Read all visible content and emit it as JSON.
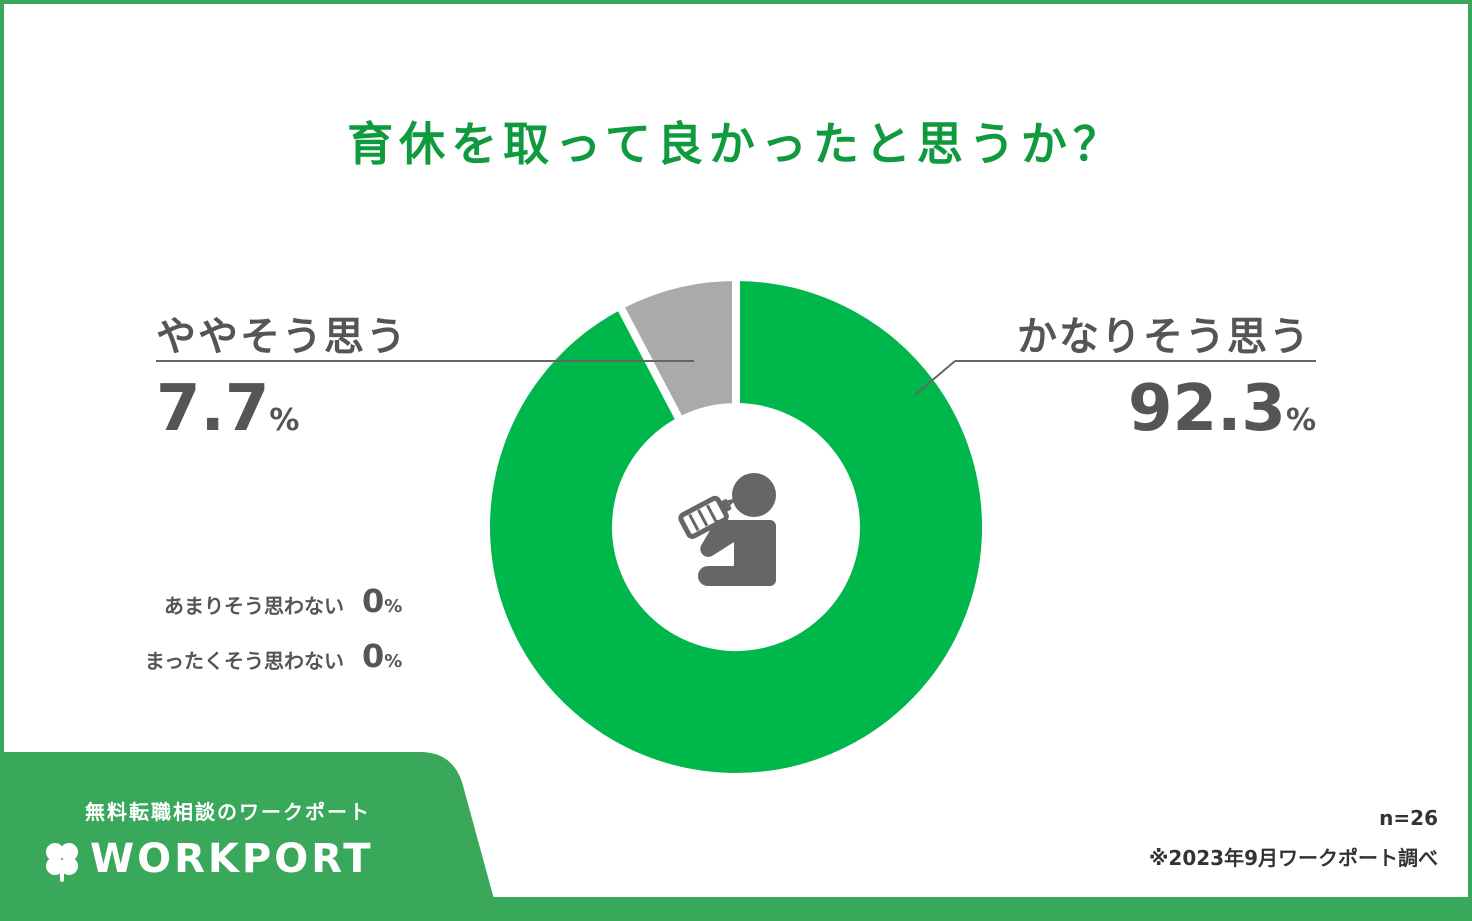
{
  "title": "育休を取って良かったと思うか？",
  "colors": {
    "major": "#00b74c",
    "minor": "#aaaaaa",
    "brand": "#3aa85a",
    "title": "#0f9a3e"
  },
  "icon": "baby-bottle-person-icon",
  "chart_data": {
    "type": "pie",
    "categories": [
      "かなりそう思う",
      "ややそう思う",
      "あまりそう思わない",
      "まったくそう思わない"
    ],
    "values": [
      92.3,
      7.7,
      0,
      0
    ],
    "unit": "%"
  },
  "labels": {
    "major_name": "かなりそう思う",
    "major_value": "92.3",
    "minor_name": "ややそう思う",
    "minor_value": "7.7",
    "pct_sign": "%",
    "rare_name": "あまりそう思わない",
    "rare_value": "0",
    "never_name": "まったくそう思わない",
    "never_value": "0"
  },
  "footer": {
    "sample": "n=26",
    "source": "※2023年9月ワークポート調べ"
  },
  "brand": {
    "tagline": "無料転職相談のワークポート",
    "logo": "WORKPORT"
  }
}
